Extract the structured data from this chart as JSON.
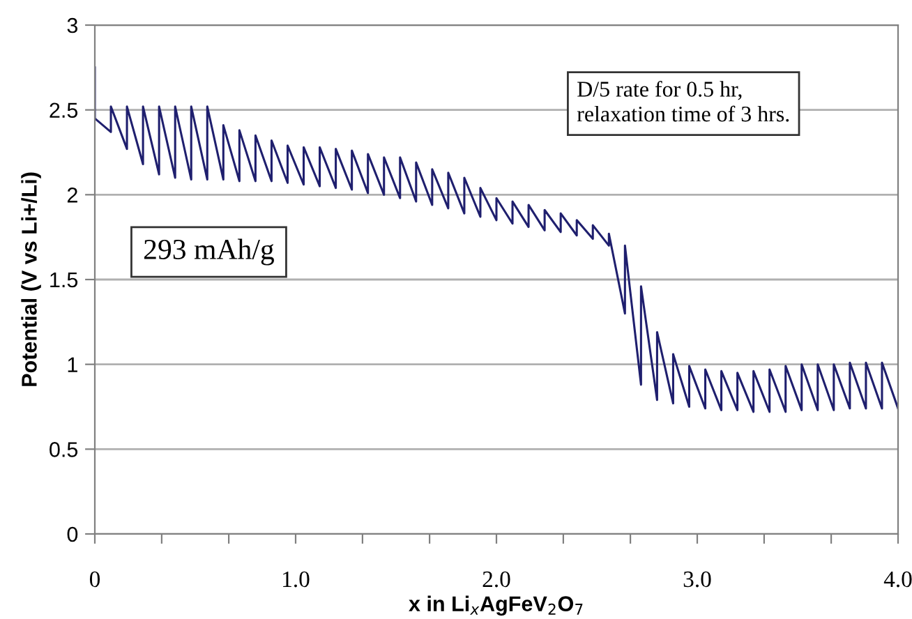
{
  "chart_data": {
    "type": "line",
    "xlabel": "x in Li$_{x}$AgFeV$_{2}$O$_{7}$",
    "ylabel": "Potential (V vs Li+/Li)",
    "annotations": [
      "D/5 rate for 0.5 hr,\nrelaxation time of 3 hrs.",
      "293 mAh/g"
    ],
    "series": [
      {
        "color": "#1f1f6e",
        "x": [
          0.0,
          0.0,
          0.08,
          0.08,
          0.16,
          0.16,
          0.24,
          0.24,
          0.32,
          0.32,
          0.4,
          0.4,
          0.48,
          0.48,
          0.56,
          0.56,
          0.64,
          0.64,
          0.72,
          0.72,
          0.8,
          0.8,
          0.88,
          0.88,
          0.96,
          0.96,
          1.04,
          1.04,
          1.12,
          1.12,
          1.2,
          1.2,
          1.28,
          1.28,
          1.36,
          1.36,
          1.44,
          1.44,
          1.52,
          1.52,
          1.6,
          1.6,
          1.68,
          1.68,
          1.76,
          1.76,
          1.84,
          1.84,
          1.92,
          1.92,
          2.0,
          2.0,
          2.08,
          2.08,
          2.16,
          2.16,
          2.24,
          2.24,
          2.32,
          2.32,
          2.4,
          2.4,
          2.48,
          2.48,
          2.56,
          2.56,
          2.64,
          2.64,
          2.72,
          2.72,
          2.8,
          2.8,
          2.88,
          2.88,
          2.96,
          2.96,
          3.04,
          3.04,
          3.12,
          3.12,
          3.2,
          3.2,
          3.28,
          3.28,
          3.36,
          3.36,
          3.44,
          3.44,
          3.52,
          3.52,
          3.6,
          3.6,
          3.68,
          3.68,
          3.76,
          3.76,
          3.84,
          3.84,
          3.92,
          3.92,
          4.0
        ],
        "values": [
          2.75,
          2.45,
          2.37,
          2.52,
          2.27,
          2.52,
          2.18,
          2.52,
          2.12,
          2.52,
          2.1,
          2.52,
          2.09,
          2.52,
          2.09,
          2.52,
          2.09,
          2.41,
          2.08,
          2.38,
          2.08,
          2.35,
          2.08,
          2.32,
          2.07,
          2.29,
          2.06,
          2.28,
          2.05,
          2.28,
          2.04,
          2.27,
          2.03,
          2.26,
          2.01,
          2.24,
          2.0,
          2.22,
          1.98,
          2.22,
          1.96,
          2.19,
          1.94,
          2.15,
          1.92,
          2.13,
          1.89,
          2.1,
          1.87,
          2.04,
          1.85,
          1.98,
          1.83,
          1.96,
          1.81,
          1.94,
          1.79,
          1.91,
          1.78,
          1.89,
          1.76,
          1.85,
          1.74,
          1.82,
          1.7,
          1.77,
          1.3,
          1.7,
          0.88,
          1.46,
          0.79,
          1.19,
          0.77,
          1.06,
          0.75,
          0.99,
          0.74,
          0.97,
          0.73,
          0.96,
          0.73,
          0.95,
          0.72,
          0.96,
          0.72,
          0.97,
          0.72,
          0.99,
          0.73,
          1.0,
          0.73,
          1.0,
          0.73,
          1.0,
          0.74,
          1.01,
          0.74,
          1.01,
          0.74,
          1.01,
          0.74
        ]
      }
    ],
    "xlim": [
      0,
      4.0
    ],
    "xticks": [
      {
        "value": 0,
        "label": "0"
      },
      {
        "value": 0.333,
        "label": null
      },
      {
        "value": 0.667,
        "label": null
      },
      {
        "value": 1.0,
        "label": "1.0"
      },
      {
        "value": 1.333,
        "label": null
      },
      {
        "value": 1.667,
        "label": null
      },
      {
        "value": 2.0,
        "label": "2.0"
      },
      {
        "value": 2.333,
        "label": null
      },
      {
        "value": 2.667,
        "label": null
      },
      {
        "value": 3.0,
        "label": "3.0"
      },
      {
        "value": 3.333,
        "label": null
      },
      {
        "value": 3.667,
        "label": null
      },
      {
        "value": 4.0,
        "label": "4.0"
      }
    ],
    "ylim": [
      0,
      3
    ],
    "yticks": [
      0,
      0.5,
      1,
      1.5,
      2,
      2.5,
      3
    ],
    "grid": "y",
    "legend": false,
    "marker": "none",
    "line_style": "solid"
  }
}
